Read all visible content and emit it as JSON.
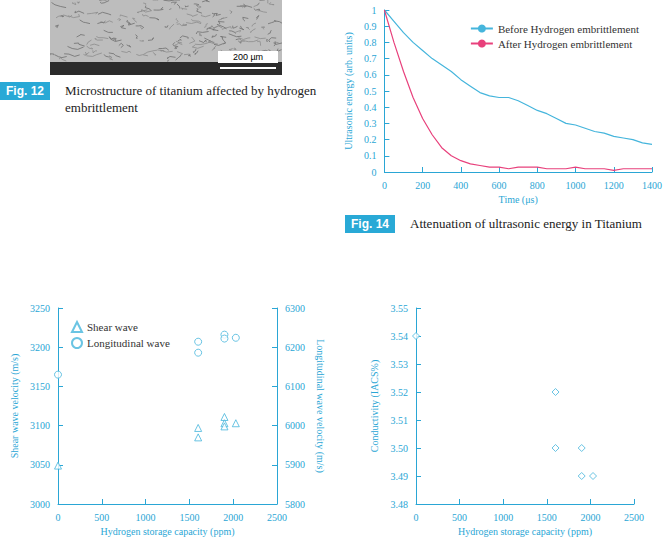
{
  "micrograph": {
    "figure_label": "Fig. 12",
    "caption": "Microstructure of titanium affected by hydrogen embrittlement",
    "scale_bar": "200 µm"
  },
  "chart_data": [
    {
      "figure_label": "Fig. 14",
      "caption": "Attenuation of ultrasonic energy in Titanium",
      "type": "line",
      "x_label": "Time (μs)",
      "y_label": "Ultrasonic energy (arb. units)",
      "xlim": [
        0,
        1400
      ],
      "xticks": [
        0,
        200,
        400,
        600,
        800,
        1000,
        1200,
        1400
      ],
      "ylim": [
        0,
        1
      ],
      "yticks": [
        0,
        0.1,
        0.2,
        0.3,
        0.4,
        0.5,
        0.6,
        0.7,
        0.8,
        0.9,
        1
      ],
      "grid": false,
      "legend": "top-right",
      "x": [
        0,
        50,
        100,
        150,
        200,
        250,
        300,
        350,
        400,
        450,
        500,
        550,
        600,
        650,
        700,
        750,
        800,
        850,
        900,
        950,
        1000,
        1050,
        1100,
        1150,
        1200,
        1250,
        1300,
        1350,
        1400
      ],
      "series": [
        {
          "name": "Before Hydrogen embrittlement",
          "color": "#45b5dc",
          "values": [
            1.0,
            0.93,
            0.86,
            0.8,
            0.75,
            0.7,
            0.66,
            0.62,
            0.57,
            0.53,
            0.49,
            0.47,
            0.46,
            0.46,
            0.44,
            0.41,
            0.38,
            0.36,
            0.33,
            0.3,
            0.29,
            0.27,
            0.25,
            0.24,
            0.22,
            0.21,
            0.2,
            0.18,
            0.17
          ]
        },
        {
          "name": "After Hydrogen embrittlement",
          "color": "#e8417c",
          "values": [
            1.0,
            0.8,
            0.62,
            0.46,
            0.33,
            0.23,
            0.15,
            0.1,
            0.07,
            0.05,
            0.04,
            0.03,
            0.03,
            0.02,
            0.03,
            0.03,
            0.03,
            0.02,
            0.02,
            0.02,
            0.03,
            0.02,
            0.02,
            0.02,
            0.01,
            0.02,
            0.02,
            0.02,
            0.02
          ]
        }
      ]
    },
    {
      "type": "scatter",
      "x_label": "Hydrogen storage capacity (ppm)",
      "y_label": "Shear wave velocity (m/s)",
      "y2_label": "Longitudinal wave velocity (m/s)",
      "xlim": [
        0,
        2500
      ],
      "xticks": [
        0,
        500,
        1000,
        1500,
        2000,
        2500
      ],
      "ylim": [
        3000,
        3250
      ],
      "yticks": [
        3000,
        3050,
        3100,
        3150,
        3200,
        3250
      ],
      "y2lim": [
        5800,
        6300
      ],
      "y2ticks": [
        5800,
        5900,
        6000,
        6100,
        6200,
        6300
      ],
      "grid": false,
      "legend": "top-left",
      "series": [
        {
          "name": "Shear wave",
          "color": "#45b5dc",
          "marker": "triangle",
          "x": [
            0,
            1600,
            1600,
            1900,
            1900,
            1900,
            2030
          ],
          "values": [
            3049,
            3097,
            3085,
            3111,
            3103,
            3099,
            3103
          ]
        },
        {
          "name": "Longitudinal wave",
          "color": "#45b5dc",
          "marker": "circle",
          "axis": "y2",
          "x": [
            0,
            1600,
            1600,
            1900,
            1900,
            2030
          ],
          "values": [
            6130,
            6214,
            6186,
            6232,
            6222,
            6224
          ]
        }
      ]
    },
    {
      "type": "scatter",
      "x_label": "Hydrogen storage capacity (ppm)",
      "y_label": "Conductivity (IACS%)",
      "xlim": [
        0,
        2500
      ],
      "xticks": [
        0,
        500,
        1000,
        1500,
        2000,
        2500
      ],
      "ylim": [
        3.48,
        3.55
      ],
      "yticks": [
        3.48,
        3.49,
        {
          "value": 3.5,
          "label": "3.50"
        },
        3.51,
        3.52,
        3.53,
        3.54,
        3.55
      ],
      "grid": false,
      "color": "#45b5dc",
      "marker": "diamond",
      "x": [
        0,
        1600,
        1600,
        1900,
        1900,
        2030
      ],
      "values": [
        3.54,
        3.52,
        3.5,
        3.5,
        3.49,
        3.49
      ]
    }
  ]
}
